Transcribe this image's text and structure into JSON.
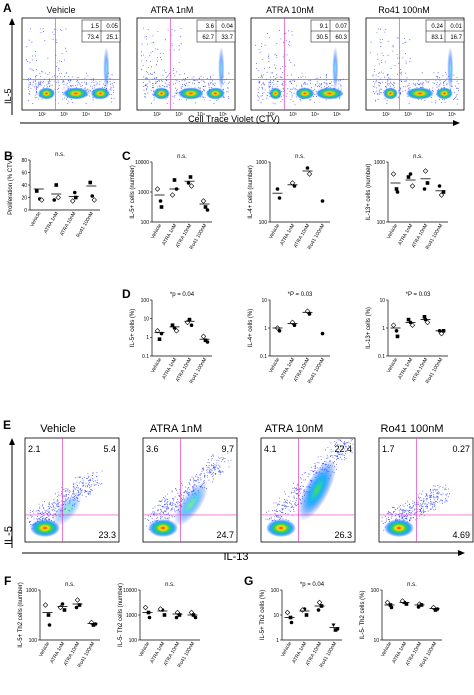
{
  "panels": {
    "A": {
      "letter": "A",
      "ylabel": "IL-5",
      "xlabel": "Cell Trace Violet (CTV)",
      "plots": [
        {
          "title": "Vehicle",
          "q": [
            "1.5",
            "0.05",
            "73.4",
            "25.1"
          ]
        },
        {
          "title": "ATRA 1nM",
          "q": [
            "3.6",
            "0.04",
            "62.7",
            "33.7"
          ]
        },
        {
          "title": "ATRA 10nM",
          "q": [
            "9.1",
            "0.07",
            "30.5",
            "60.3"
          ]
        },
        {
          "title": "Ro41 100nM",
          "q": [
            "0.24",
            "0.01",
            "83.1",
            "16.7"
          ]
        }
      ],
      "tick_labels": [
        "10²",
        "10³",
        "10⁴",
        "10⁵"
      ]
    },
    "B": {
      "letter": "B",
      "sig": "n.s.",
      "ylabel": "Proliferation (% CTV⁻)",
      "yticks": [
        "80",
        "60",
        "40",
        "20",
        "0"
      ]
    },
    "C": {
      "letter": "C",
      "subplots": [
        {
          "sig": "n.s.",
          "ylabel": "IL-5+ cells (number)"
        },
        {
          "sig": "n.s.",
          "ylabel": "IL-4+ cells (number)"
        },
        {
          "sig": "n.s.",
          "ylabel": "IL-13+ cells (number)"
        }
      ],
      "ytick_a": "10000",
      "ytick_b": "1000",
      "ytick_c": "100",
      "ytick_b2": "1000",
      "ytick_c2": "100"
    },
    "D": {
      "letter": "D",
      "subplots": [
        {
          "sig": "*p = 0.04",
          "ylabel": "IL-5+ cells (%)"
        },
        {
          "sig": "*P = 0.03",
          "ylabel": "IL-4+ cells (%)"
        },
        {
          "sig": "*P = 0.03",
          "ylabel": "IL-13+ cells (%)"
        }
      ],
      "yticks": [
        "100",
        "10",
        "1",
        "0.1"
      ],
      "yticks_b": [
        "10",
        "1",
        "0.1"
      ]
    },
    "E": {
      "letter": "E",
      "ylabel": "IL-5",
      "xlabel": "IL-13",
      "plots": [
        {
          "title": "Vehicle",
          "q": [
            "2.1",
            "5.4",
            "23.3"
          ]
        },
        {
          "title": "ATRA 1nM",
          "q": [
            "3.6",
            "9.7",
            "24.7"
          ]
        },
        {
          "title": "ATRA 10nM",
          "q": [
            "4.1",
            "22.4",
            "26.3"
          ]
        },
        {
          "title": "Ro41 100nM",
          "q": [
            "1.7",
            "0.27",
            "4.69"
          ]
        }
      ]
    },
    "F": {
      "letter": "F",
      "subplots": [
        {
          "sig": "n.s.",
          "ylabel": "IL-5+ Th2 cells (number)"
        },
        {
          "sig": "n.s.",
          "ylabel": "IL-5- Th2 cells (number)"
        }
      ],
      "yticks": [
        "1000",
        "100"
      ],
      "yticks_b": [
        "10000",
        "1000",
        "100"
      ]
    },
    "G": {
      "letter": "G",
      "subplots": [
        {
          "sig": "*p = 0.04",
          "ylabel": "IL-5+ Th2 cells (%)"
        },
        {
          "sig": "n.s.",
          "ylabel": "IL-5- Th2 cells (%)"
        }
      ],
      "yticks": [
        "100",
        "10",
        "1"
      ],
      "yticks_b": [
        "100",
        "10"
      ]
    }
  },
  "categories": [
    "Vehicle",
    "ATRA 1nM",
    "ATRA 10nM",
    "Ro41 100nM"
  ]
}
